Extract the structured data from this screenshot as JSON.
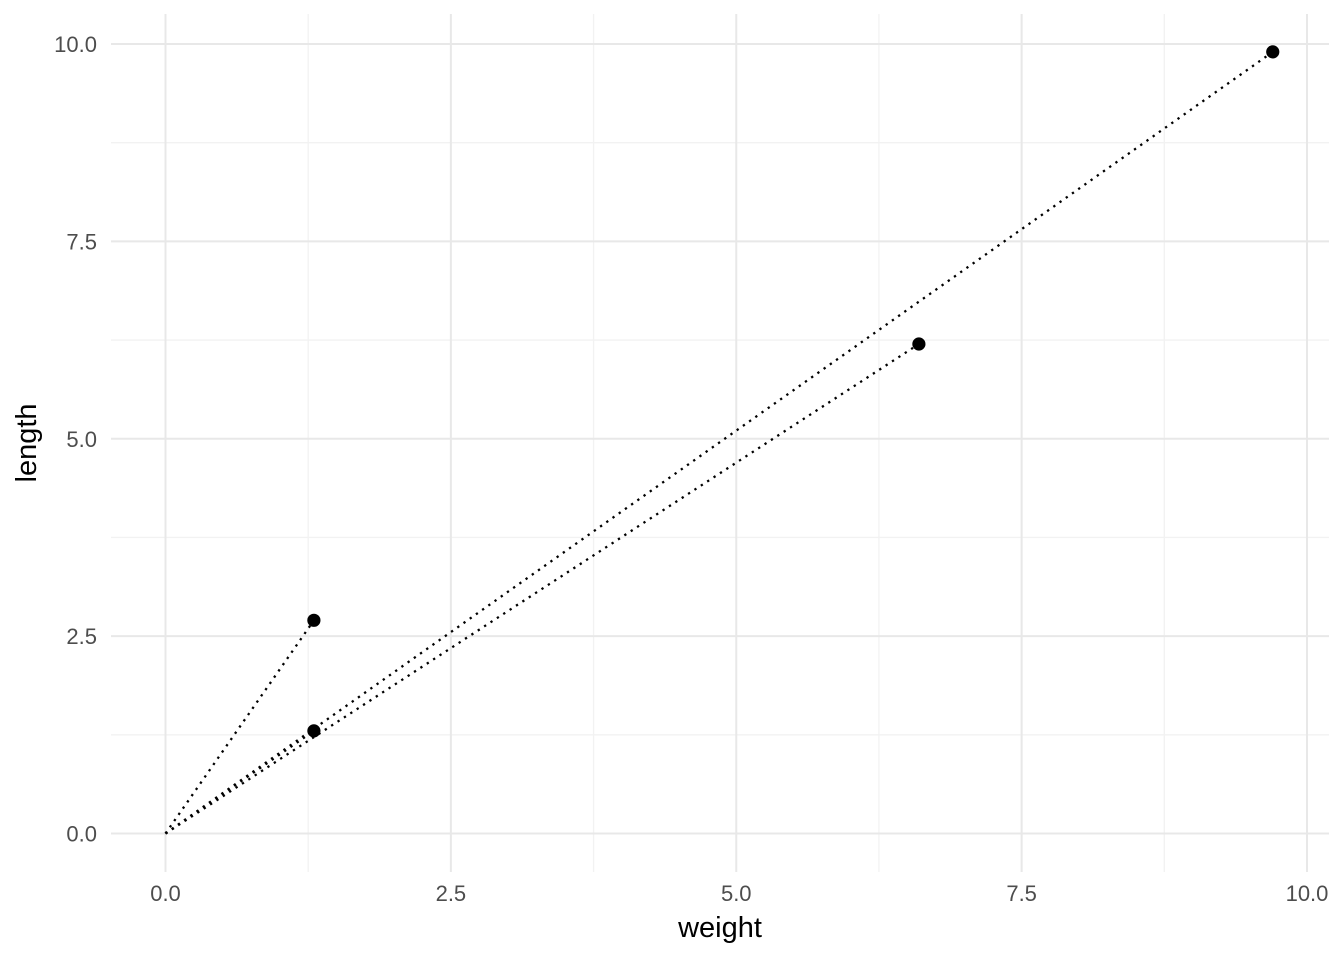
{
  "chart_data": {
    "type": "scatter",
    "title": "",
    "xlabel": "weight",
    "ylabel": "length",
    "x_ticks": [
      {
        "value": 0.0,
        "label": "0.0"
      },
      {
        "value": 2.5,
        "label": "2.5"
      },
      {
        "value": 5.0,
        "label": "5.0"
      },
      {
        "value": 7.5,
        "label": "7.5"
      },
      {
        "value": 10.0,
        "label": "10.0"
      }
    ],
    "y_ticks": [
      {
        "value": 0.0,
        "label": "0.0"
      },
      {
        "value": 2.5,
        "label": "2.5"
      },
      {
        "value": 5.0,
        "label": "5.0"
      },
      {
        "value": 7.5,
        "label": "7.5"
      },
      {
        "value": 10.0,
        "label": "10.0"
      }
    ],
    "xlim": [
      -0.49,
      10.19
    ],
    "ylim": [
      -0.49,
      10.39
    ],
    "grid": "major-and-minor",
    "legend": "none",
    "points": [
      {
        "x": 1.3,
        "y": 2.7
      },
      {
        "x": 1.3,
        "y": 1.3
      },
      {
        "x": 6.6,
        "y": 6.2
      },
      {
        "x": 9.7,
        "y": 9.9
      }
    ],
    "segments": [
      {
        "x1": 0,
        "y1": 0,
        "x2": 1.3,
        "y2": 2.7
      },
      {
        "x1": 0,
        "y1": 0,
        "x2": 1.3,
        "y2": 1.3
      },
      {
        "x1": 0,
        "y1": 0,
        "x2": 6.6,
        "y2": 6.2
      },
      {
        "x1": 0,
        "y1": 0,
        "x2": 9.7,
        "y2": 9.9
      }
    ],
    "segment_style": "dotted",
    "point_shape": "filled-circle",
    "colors": {
      "point": "#000000",
      "segment": "#000000",
      "grid_major": "#E8E8E8",
      "grid_minor": "#F2F2F2",
      "tick_label": "#4D4D4D",
      "axis_title": "#000000",
      "background": "#FFFFFF"
    }
  }
}
